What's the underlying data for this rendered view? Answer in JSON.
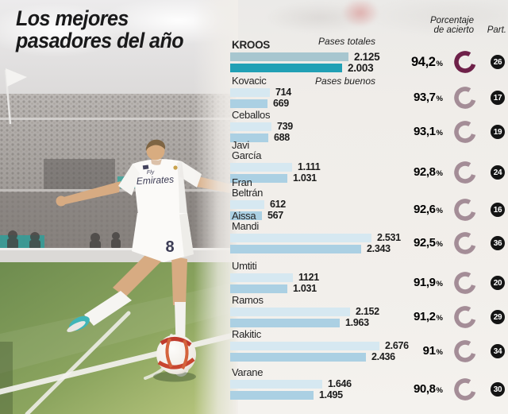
{
  "title": {
    "line1": "Los mejores",
    "line2": "pasadores del año"
  },
  "legend": {
    "pases_totales": "Pases totales",
    "pases_buenos": "Pases buenos"
  },
  "columns": {
    "accuracy_line1": "Porcentaje",
    "accuracy_line2": "de acierto",
    "matches": "Part.",
    "percent_symbol": "%"
  },
  "colors": {
    "bar_total": "#d6e8f1",
    "bar_good": "#abd0e3",
    "bar_total_highlight": "#a7c6cf",
    "bar_good_highlight": "#21a0b5",
    "ring": "#a48d97",
    "ring_highlight": "#6e2149",
    "badge_bg": "#141414",
    "badge_text": "#ffffff"
  },
  "players": [
    {
      "name_lines": [
        "KROOS"
      ],
      "total": "2.125",
      "good": "2.003",
      "pct": "94,2",
      "matches": "26",
      "highlight": true
    },
    {
      "name_lines": [
        "Kovacic"
      ],
      "total": "714",
      "good": "669",
      "pct": "93,7",
      "matches": "17",
      "highlight": false
    },
    {
      "name_lines": [
        "Ceballos"
      ],
      "total": "739",
      "good": "688",
      "pct": "93,1",
      "matches": "19",
      "highlight": false
    },
    {
      "name_lines": [
        "Javi",
        "García"
      ],
      "total": "1.111",
      "good": "1.031",
      "pct": "92,8",
      "matches": "24",
      "highlight": false
    },
    {
      "name_lines": [
        "Fran",
        "Beltrán"
      ],
      "total": "612",
      "good": "567",
      "pct": "92,6",
      "matches": "16",
      "highlight": false
    },
    {
      "name_lines": [
        "Aissa",
        "Mandi"
      ],
      "total": "2.531",
      "good": "2.343",
      "pct": "92,5",
      "matches": "36",
      "highlight": false
    },
    {
      "name_lines": [
        "Umtiti"
      ],
      "total": "1121",
      "good": "1.031",
      "pct": "91,9",
      "matches": "20",
      "highlight": false
    },
    {
      "name_lines": [
        "Ramos"
      ],
      "total": "2.152",
      "good": "1.963",
      "pct": "91,2",
      "matches": "29",
      "highlight": false
    },
    {
      "name_lines": [
        "Rakitic"
      ],
      "total": "2.676",
      "good": "2.436",
      "pct": "91",
      "matches": "34",
      "highlight": false
    },
    {
      "name_lines": [
        "Varane"
      ],
      "total": "1.646",
      "good": "1.495",
      "pct": "90,8",
      "matches": "30",
      "highlight": false
    }
  ],
  "chart_data": {
    "type": "bar",
    "orientation": "horizontal",
    "title": "Los mejores pasadores del año",
    "categories": [
      "Kroos",
      "Kovacic",
      "Ceballos",
      "Javi García",
      "Fran Beltrán",
      "Aissa Mandi",
      "Umtiti",
      "Ramos",
      "Rakitic",
      "Varane"
    ],
    "series": [
      {
        "name": "Pases totales",
        "values": [
          2125,
          714,
          739,
          1111,
          612,
          2531,
          1121,
          2152,
          2676,
          1646
        ]
      },
      {
        "name": "Pases buenos",
        "values": [
          2003,
          669,
          688,
          1031,
          567,
          2343,
          1031,
          1963,
          2436,
          1495
        ]
      },
      {
        "name": "Porcentaje de acierto (%)",
        "values": [
          94.2,
          93.7,
          93.1,
          92.8,
          92.6,
          92.5,
          91.9,
          91.2,
          91,
          90.8
        ]
      },
      {
        "name": "Part. (partidos)",
        "values": [
          26,
          17,
          19,
          24,
          16,
          36,
          20,
          29,
          34,
          30
        ]
      }
    ],
    "xlim": [
      0,
      2676
    ],
    "legend_position": "top",
    "grid": false
  }
}
